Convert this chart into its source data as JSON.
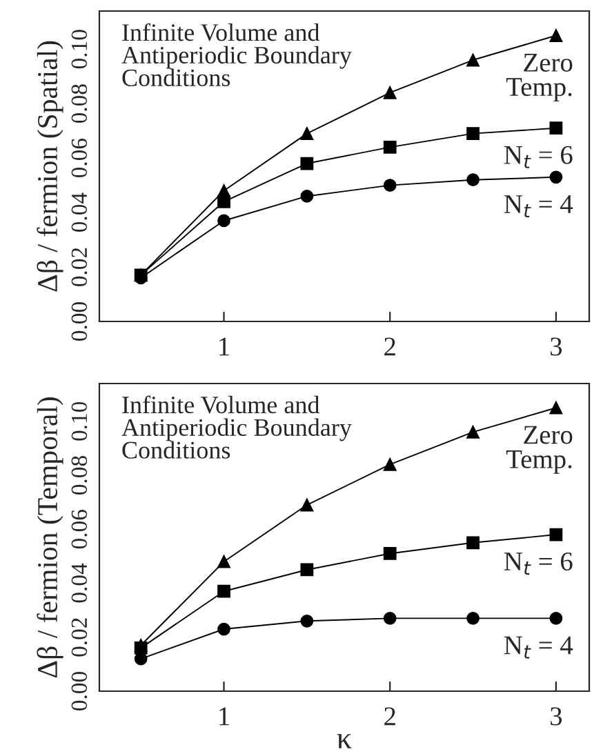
{
  "chart_data": [
    {
      "type": "line",
      "ylabel": "Δβ / fermion (Spatial)",
      "annotations": [
        "Infinite Volume and\nAntiperiodic Boundary\nConditions"
      ],
      "x": [
        0.5,
        1,
        1.5,
        2,
        2.5,
        3
      ],
      "xlim": [
        0.25,
        3.2
      ],
      "xticks": [
        1,
        2,
        3
      ],
      "ylim": [
        0,
        0.114
      ],
      "yticks": [
        {
          "value": 0,
          "label": "0.00"
        },
        {
          "value": 0.02,
          "label": "0.02"
        },
        {
          "value": 0.04,
          "label": "0.04"
        },
        {
          "value": 0.06,
          "label": "0.06"
        },
        {
          "value": 0.08,
          "label": "0.08"
        },
        {
          "value": 0.1,
          "label": "0.10"
        }
      ],
      "grid": false,
      "legend": false,
      "line_style": "solid",
      "series": [
        {
          "name": "Zero\nTemp.",
          "color": "#000000",
          "marker": "triangle",
          "values": [
            0.017,
            0.048,
            0.069,
            0.084,
            0.096,
            0.105
          ]
        },
        {
          "name": "N$_{t}$ = 6",
          "color": "#000000",
          "marker": "square",
          "values": [
            0.017,
            0.044,
            0.058,
            0.064,
            0.069,
            0.071
          ]
        },
        {
          "name": "N$_{t}$ = 4",
          "color": "#000000",
          "marker": "circle",
          "values": [
            0.016,
            0.037,
            0.046,
            0.05,
            0.052,
            0.053
          ]
        }
      ]
    },
    {
      "type": "line",
      "ylabel": "Δβ / fermion (Temporal)",
      "xlabel": "κ",
      "annotations": [
        "Infinite Volume and\nAntiperiodic Boundary\nConditions"
      ],
      "x": [
        0.5,
        1,
        1.5,
        2,
        2.5,
        3
      ],
      "xlim": [
        0.25,
        3.2
      ],
      "xticks": [
        1,
        2,
        3
      ],
      "ylim": [
        0,
        0.114
      ],
      "yticks": [
        {
          "value": 0,
          "label": "0.00"
        },
        {
          "value": 0.02,
          "label": "0.02"
        },
        {
          "value": 0.04,
          "label": "0.04"
        },
        {
          "value": 0.06,
          "label": "0.06"
        },
        {
          "value": 0.08,
          "label": "0.08"
        },
        {
          "value": 0.1,
          "label": "0.10"
        }
      ],
      "grid": false,
      "legend": false,
      "line_style": "solid",
      "series": [
        {
          "name": "Zero\nTemp.",
          "color": "#000000",
          "marker": "triangle",
          "values": [
            0.017,
            0.048,
            0.069,
            0.084,
            0.096,
            0.105
          ]
        },
        {
          "name": "N$_{t}$ = 6",
          "color": "#000000",
          "marker": "square",
          "values": [
            0.016,
            0.037,
            0.045,
            0.051,
            0.055,
            0.058
          ]
        },
        {
          "name": "N$_{t}$ = 4",
          "color": "#000000",
          "marker": "circle",
          "values": [
            0.012,
            0.023,
            0.026,
            0.027,
            0.027,
            0.027
          ]
        }
      ]
    }
  ]
}
